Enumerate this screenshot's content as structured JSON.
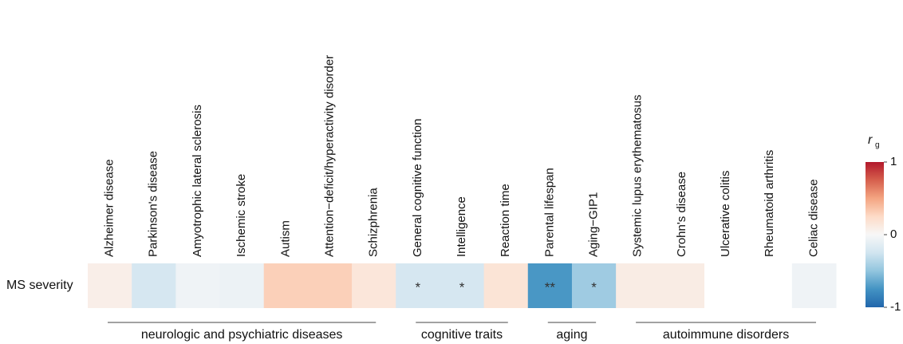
{
  "chart_data": {
    "type": "heatmap",
    "rows": [
      "MS severity"
    ],
    "categories": [
      "Alzheimer disease",
      "Parkinson's disease",
      "Amyotrophic lateral sclerosis",
      "Ischemic stroke",
      "Autism",
      "Attention−deficit/hyperactivity disorder",
      "Schizphrenia",
      "General cognitive function",
      "Intelligence",
      "Reaction time",
      "Parental lifespan",
      "Aging−GIP1",
      "Systemic lupus erythematosus",
      "Crohn's disease",
      "Ulcerative colitis",
      "Rheumatoid arthritis",
      "Celiac disease"
    ],
    "values": [
      [
        0.08,
        -0.22,
        -0.05,
        -0.07,
        0.3,
        0.3,
        0.15,
        -0.22,
        -0.22,
        0.17,
        -0.73,
        -0.45,
        0.1,
        0.1,
        null,
        null,
        -0.05
      ]
    ],
    "annotations": [
      [
        null,
        null,
        null,
        null,
        null,
        null,
        null,
        "*",
        "*",
        null,
        "**",
        "*",
        null,
        null,
        null,
        null,
        null
      ]
    ],
    "groups": [
      {
        "label": "neurologic and psychiatric diseases",
        "span": [
          0,
          6
        ]
      },
      {
        "label": "cognitive traits",
        "span": [
          7,
          9
        ]
      },
      {
        "label": "aging",
        "span": [
          10,
          11
        ]
      },
      {
        "label": "autoimmune disorders",
        "span": [
          12,
          16
        ]
      }
    ],
    "colorscale": [
      "#2166ac",
      "#4393c3",
      "#92c5de",
      "#d1e5f0",
      "#f7f7f7",
      "#fddbc7",
      "#f4a582",
      "#d6604d",
      "#b2182b"
    ],
    "zlim": [
      -1,
      1
    ],
    "zticks": [
      -1,
      0,
      1
    ],
    "colorbar_title": "r",
    "colorbar_title_sub": "g"
  }
}
